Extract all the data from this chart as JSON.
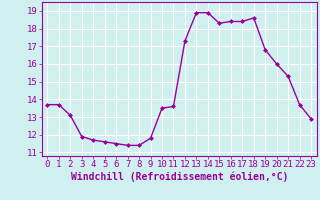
{
  "x": [
    0,
    1,
    2,
    3,
    4,
    5,
    6,
    7,
    8,
    9,
    10,
    11,
    12,
    13,
    14,
    15,
    16,
    17,
    18,
    19,
    20,
    21,
    22,
    23
  ],
  "y": [
    13.7,
    13.7,
    13.1,
    11.9,
    11.7,
    11.6,
    11.5,
    11.4,
    11.4,
    11.8,
    13.5,
    13.6,
    17.3,
    18.9,
    18.9,
    18.3,
    18.4,
    18.4,
    18.6,
    16.8,
    16.0,
    15.3,
    13.7,
    12.9
  ],
  "line_color": "#990099",
  "marker": "D",
  "marker_size": 2.0,
  "line_width": 1.0,
  "bg_color": "#d0f0f0",
  "grid_color": "#ffffff",
  "xlabel": "Windchill (Refroidissement éolien,°C)",
  "xlabel_color": "#990099",
  "xlabel_fontsize": 7,
  "tick_color": "#990099",
  "tick_fontsize": 6.5,
  "ylim": [
    10.8,
    19.5
  ],
  "yticks": [
    11,
    12,
    13,
    14,
    15,
    16,
    17,
    18,
    19
  ],
  "xlim": [
    -0.5,
    23.5
  ]
}
